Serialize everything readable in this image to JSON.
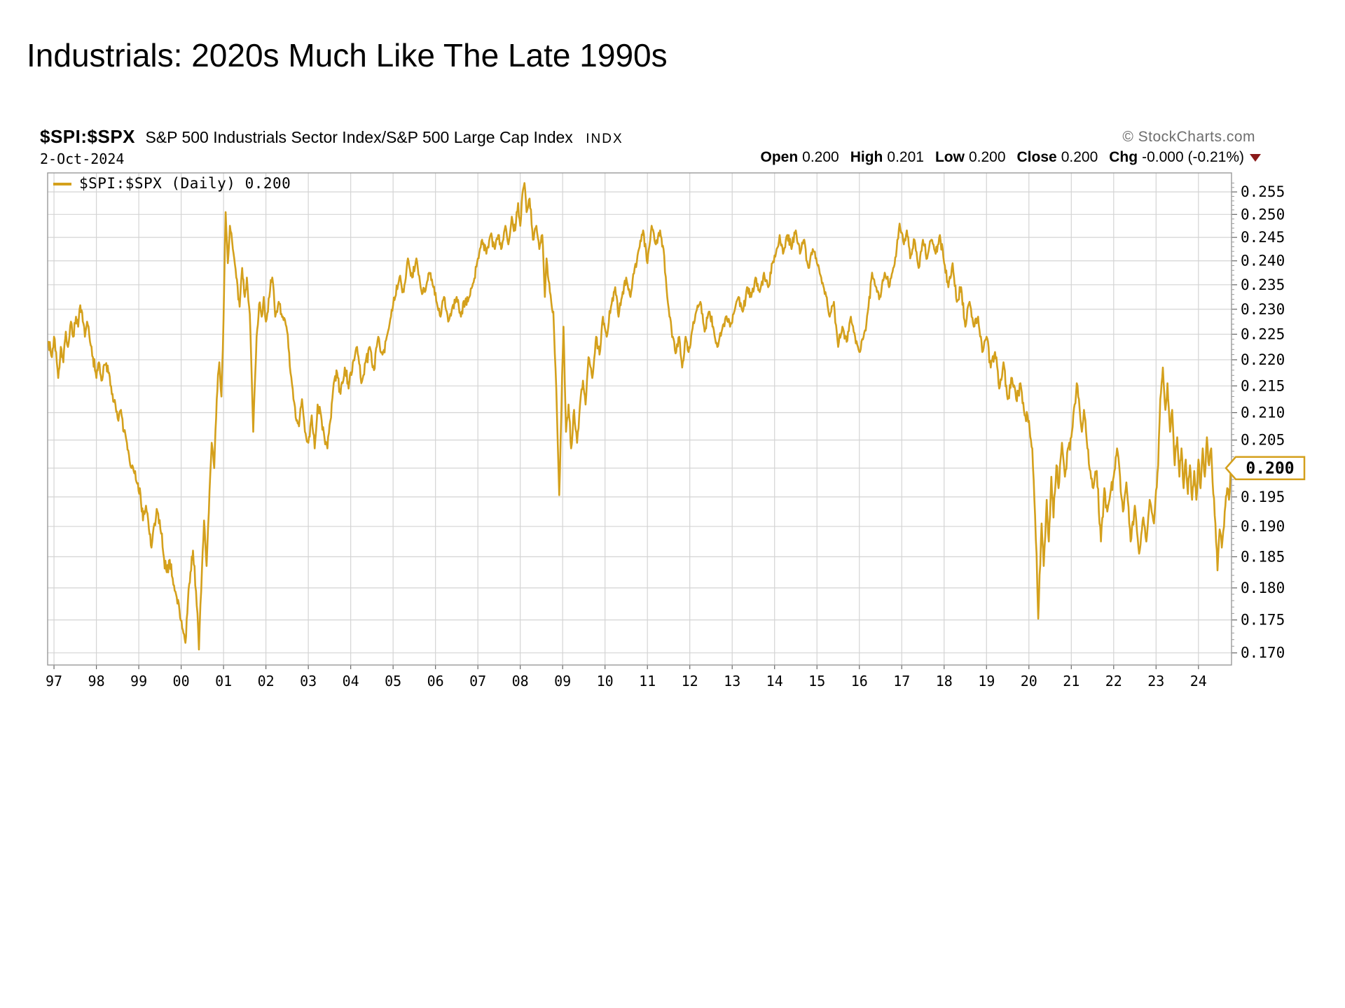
{
  "page": {
    "title": "Industrials: 2020s Much Like The Late 1990s"
  },
  "chart": {
    "symbol": "$SPI:$SPX",
    "name": "S&P 500 Industrials Sector Index/S&P 500 Large Cap Index",
    "exchange": "INDX",
    "source": "© StockCharts.com",
    "date": "2-Oct-2024",
    "legend": "$SPI:$SPX (Daily) 0.200",
    "price_tag": "0.200",
    "quote_items": [
      {
        "label": "Open",
        "value": "0.200"
      },
      {
        "label": "High",
        "value": "0.201"
      },
      {
        "label": "Low",
        "value": "0.200"
      },
      {
        "label": "Close",
        "value": "0.200"
      },
      {
        "label": "Chg",
        "value": "-0.000 (-0.21%)",
        "arrow": "down"
      }
    ],
    "colors": {
      "line": "#D4A01C",
      "grid": "#d4d4d4",
      "border": "#9a9a9a",
      "tick": "#666666",
      "tag_border": "#D4A01C",
      "arrow_negative": "#8b1a1a",
      "source_grey": "#6e6e6e"
    }
  },
  "chart_data": {
    "type": "line",
    "scale": "log",
    "title": "$SPI:$SPX (Daily)",
    "legend_entries": [
      "$SPI:$SPX (Daily) 0.200"
    ],
    "grid": true,
    "x_labels": [
      "97",
      "98",
      "99",
      "00",
      "01",
      "02",
      "03",
      "04",
      "05",
      "06",
      "07",
      "08",
      "09",
      "10",
      "11",
      "12",
      "13",
      "14",
      "15",
      "16",
      "17",
      "18",
      "19",
      "20",
      "21",
      "22",
      "23",
      "24"
    ],
    "x_axis_min": 1996.85,
    "x_axis_max": 2024.78,
    "y_ticks": [
      0.255,
      0.25,
      0.245,
      0.24,
      0.235,
      0.23,
      0.225,
      0.22,
      0.215,
      0.21,
      0.205,
      0.2,
      0.195,
      0.19,
      0.185,
      0.18,
      0.175,
      0.17
    ],
    "y_axis_min": 0.1682,
    "y_axis_max": 0.2593,
    "last_value": 0.2,
    "series": [
      [
        1996.87,
        0.2235
      ],
      [
        1996.95,
        0.2205
      ],
      [
        1997.0,
        0.2245
      ],
      [
        1997.05,
        0.2215
      ],
      [
        1997.1,
        0.2165
      ],
      [
        1997.16,
        0.2225
      ],
      [
        1997.22,
        0.2195
      ],
      [
        1997.28,
        0.2255
      ],
      [
        1997.33,
        0.2225
      ],
      [
        1997.4,
        0.2275
      ],
      [
        1997.45,
        0.2245
      ],
      [
        1997.52,
        0.2285
      ],
      [
        1997.57,
        0.2265
      ],
      [
        1997.62,
        0.2308
      ],
      [
        1997.68,
        0.2275
      ],
      [
        1997.73,
        0.2245
      ],
      [
        1997.78,
        0.2275
      ],
      [
        1997.85,
        0.2235
      ],
      [
        1997.92,
        0.2205
      ],
      [
        1998.0,
        0.2165
      ],
      [
        1998.06,
        0.2195
      ],
      [
        1998.12,
        0.216
      ],
      [
        1998.2,
        0.219
      ],
      [
        1998.3,
        0.2175
      ],
      [
        1998.38,
        0.2135
      ],
      [
        1998.45,
        0.2115
      ],
      [
        1998.52,
        0.2085
      ],
      [
        1998.58,
        0.2105
      ],
      [
        1998.65,
        0.2065
      ],
      [
        1998.72,
        0.2045
      ],
      [
        1998.8,
        0.2005
      ],
      [
        1998.88,
        0.1995
      ],
      [
        1998.95,
        0.1975
      ],
      [
        1999.04,
        0.1955
      ],
      [
        1999.1,
        0.191
      ],
      [
        1999.17,
        0.1935
      ],
      [
        1999.24,
        0.1895
      ],
      [
        1999.3,
        0.1865
      ],
      [
        1999.37,
        0.1905
      ],
      [
        1999.44,
        0.1925
      ],
      [
        1999.51,
        0.1895
      ],
      [
        1999.58,
        0.1855
      ],
      [
        1999.66,
        0.1825
      ],
      [
        1999.73,
        0.1845
      ],
      [
        1999.8,
        0.1815
      ],
      [
        1999.88,
        0.179
      ],
      [
        1999.96,
        0.1765
      ],
      [
        2000.04,
        0.1735
      ],
      [
        2000.1,
        0.1715
      ],
      [
        2000.16,
        0.178
      ],
      [
        2000.22,
        0.1825
      ],
      [
        2000.28,
        0.186
      ],
      [
        2000.35,
        0.1795
      ],
      [
        2000.42,
        0.1705
      ],
      [
        2000.49,
        0.183
      ],
      [
        2000.54,
        0.191
      ],
      [
        2000.6,
        0.1835
      ],
      [
        2000.67,
        0.196
      ],
      [
        2000.72,
        0.2045
      ],
      [
        2000.78,
        0.2
      ],
      [
        2000.84,
        0.2125
      ],
      [
        2000.9,
        0.2195
      ],
      [
        2000.95,
        0.213
      ],
      [
        2001.0,
        0.228
      ],
      [
        2001.05,
        0.2505
      ],
      [
        2001.1,
        0.2395
      ],
      [
        2001.15,
        0.2475
      ],
      [
        2001.22,
        0.2425
      ],
      [
        2001.3,
        0.2365
      ],
      [
        2001.38,
        0.2305
      ],
      [
        2001.44,
        0.2385
      ],
      [
        2001.5,
        0.2325
      ],
      [
        2001.55,
        0.2365
      ],
      [
        2001.62,
        0.229
      ],
      [
        2001.7,
        0.2065
      ],
      [
        2001.78,
        0.2245
      ],
      [
        2001.84,
        0.231
      ],
      [
        2001.9,
        0.2285
      ],
      [
        2001.95,
        0.2325
      ],
      [
        2002.0,
        0.2275
      ],
      [
        2002.08,
        0.2325
      ],
      [
        2002.15,
        0.2365
      ],
      [
        2002.22,
        0.2285
      ],
      [
        2002.3,
        0.2315
      ],
      [
        2002.4,
        0.2285
      ],
      [
        2002.5,
        0.2255
      ],
      [
        2002.58,
        0.2175
      ],
      [
        2002.65,
        0.2125
      ],
      [
        2002.72,
        0.2085
      ],
      [
        2002.78,
        0.2075
      ],
      [
        2002.85,
        0.2125
      ],
      [
        2002.92,
        0.2065
      ],
      [
        2003.0,
        0.2045
      ],
      [
        2003.08,
        0.2095
      ],
      [
        2003.15,
        0.2035
      ],
      [
        2003.22,
        0.2115
      ],
      [
        2003.3,
        0.2095
      ],
      [
        2003.38,
        0.2055
      ],
      [
        2003.45,
        0.2035
      ],
      [
        2003.52,
        0.2085
      ],
      [
        2003.6,
        0.2155
      ],
      [
        2003.68,
        0.2175
      ],
      [
        2003.76,
        0.2135
      ],
      [
        2003.86,
        0.2185
      ],
      [
        2003.95,
        0.2145
      ],
      [
        2004.05,
        0.2195
      ],
      [
        2004.15,
        0.2225
      ],
      [
        2004.25,
        0.2155
      ],
      [
        2004.35,
        0.2195
      ],
      [
        2004.45,
        0.2225
      ],
      [
        2004.55,
        0.218
      ],
      [
        2004.65,
        0.2245
      ],
      [
        2004.75,
        0.221
      ],
      [
        2004.85,
        0.2245
      ],
      [
        2004.95,
        0.2285
      ],
      [
        2005.05,
        0.2325
      ],
      [
        2005.15,
        0.2365
      ],
      [
        2005.25,
        0.2335
      ],
      [
        2005.35,
        0.2405
      ],
      [
        2005.45,
        0.2365
      ],
      [
        2005.55,
        0.2405
      ],
      [
        2005.65,
        0.2345
      ],
      [
        2005.75,
        0.2335
      ],
      [
        2005.85,
        0.2375
      ],
      [
        2005.95,
        0.2345
      ],
      [
        2006.05,
        0.2305
      ],
      [
        2006.12,
        0.2285
      ],
      [
        2006.2,
        0.2325
      ],
      [
        2006.3,
        0.2275
      ],
      [
        2006.4,
        0.2305
      ],
      [
        2006.5,
        0.2325
      ],
      [
        2006.6,
        0.2285
      ],
      [
        2006.7,
        0.2315
      ],
      [
        2006.8,
        0.2325
      ],
      [
        2006.9,
        0.2355
      ],
      [
        2007.0,
        0.2405
      ],
      [
        2007.1,
        0.2445
      ],
      [
        2007.2,
        0.2415
      ],
      [
        2007.3,
        0.2455
      ],
      [
        2007.4,
        0.2425
      ],
      [
        2007.48,
        0.2455
      ],
      [
        2007.55,
        0.2425
      ],
      [
        2007.65,
        0.2475
      ],
      [
        2007.72,
        0.2435
      ],
      [
        2007.8,
        0.2495
      ],
      [
        2007.88,
        0.2465
      ],
      [
        2007.95,
        0.2525
      ],
      [
        2008.0,
        0.2475
      ],
      [
        2008.05,
        0.2545
      ],
      [
        2008.1,
        0.257
      ],
      [
        2008.15,
        0.2505
      ],
      [
        2008.22,
        0.2535
      ],
      [
        2008.3,
        0.2445
      ],
      [
        2008.38,
        0.2475
      ],
      [
        2008.45,
        0.2425
      ],
      [
        2008.52,
        0.2455
      ],
      [
        2008.58,
        0.2325
      ],
      [
        2008.62,
        0.2405
      ],
      [
        2008.7,
        0.2335
      ],
      [
        2008.78,
        0.2295
      ],
      [
        2008.85,
        0.2145
      ],
      [
        2008.92,
        0.1953
      ],
      [
        2008.97,
        0.2105
      ],
      [
        2009.02,
        0.2265
      ],
      [
        2009.08,
        0.2065
      ],
      [
        2009.14,
        0.2115
      ],
      [
        2009.2,
        0.2035
      ],
      [
        2009.27,
        0.2105
      ],
      [
        2009.34,
        0.2045
      ],
      [
        2009.41,
        0.2115
      ],
      [
        2009.48,
        0.216
      ],
      [
        2009.54,
        0.2115
      ],
      [
        2009.61,
        0.2205
      ],
      [
        2009.7,
        0.2165
      ],
      [
        2009.79,
        0.2245
      ],
      [
        2009.87,
        0.221
      ],
      [
        2009.95,
        0.2285
      ],
      [
        2010.04,
        0.2245
      ],
      [
        2010.14,
        0.2305
      ],
      [
        2010.24,
        0.2345
      ],
      [
        2010.32,
        0.2285
      ],
      [
        2010.4,
        0.2325
      ],
      [
        2010.5,
        0.2365
      ],
      [
        2010.6,
        0.2325
      ],
      [
        2010.7,
        0.2385
      ],
      [
        2010.8,
        0.2425
      ],
      [
        2010.9,
        0.2465
      ],
      [
        2011.0,
        0.2395
      ],
      [
        2011.1,
        0.2475
      ],
      [
        2011.2,
        0.2435
      ],
      [
        2011.3,
        0.2465
      ],
      [
        2011.38,
        0.2425
      ],
      [
        2011.45,
        0.2345
      ],
      [
        2011.52,
        0.2285
      ],
      [
        2011.6,
        0.2245
      ],
      [
        2011.68,
        0.2215
      ],
      [
        2011.75,
        0.2245
      ],
      [
        2011.82,
        0.2185
      ],
      [
        2011.9,
        0.2245
      ],
      [
        2011.97,
        0.2215
      ],
      [
        2012.05,
        0.2255
      ],
      [
        2012.15,
        0.2295
      ],
      [
        2012.25,
        0.2315
      ],
      [
        2012.35,
        0.2255
      ],
      [
        2012.45,
        0.2295
      ],
      [
        2012.55,
        0.2265
      ],
      [
        2012.65,
        0.2225
      ],
      [
        2012.75,
        0.2255
      ],
      [
        2012.85,
        0.2285
      ],
      [
        2012.95,
        0.2265
      ],
      [
        2013.05,
        0.2295
      ],
      [
        2013.15,
        0.2325
      ],
      [
        2013.25,
        0.2295
      ],
      [
        2013.35,
        0.2345
      ],
      [
        2013.45,
        0.2325
      ],
      [
        2013.55,
        0.2365
      ],
      [
        2013.65,
        0.2335
      ],
      [
        2013.75,
        0.2375
      ],
      [
        2013.85,
        0.2345
      ],
      [
        2013.95,
        0.2395
      ],
      [
        2014.05,
        0.2425
      ],
      [
        2014.12,
        0.2455
      ],
      [
        2014.2,
        0.2415
      ],
      [
        2014.3,
        0.2455
      ],
      [
        2014.4,
        0.2425
      ],
      [
        2014.5,
        0.2465
      ],
      [
        2014.6,
        0.2415
      ],
      [
        2014.7,
        0.2445
      ],
      [
        2014.8,
        0.2385
      ],
      [
        2014.9,
        0.2425
      ],
      [
        2015.0,
        0.2395
      ],
      [
        2015.1,
        0.2365
      ],
      [
        2015.2,
        0.2335
      ],
      [
        2015.3,
        0.2285
      ],
      [
        2015.4,
        0.2315
      ],
      [
        2015.5,
        0.2225
      ],
      [
        2015.6,
        0.2265
      ],
      [
        2015.7,
        0.2235
      ],
      [
        2015.8,
        0.2285
      ],
      [
        2015.9,
        0.2245
      ],
      [
        2016.0,
        0.2215
      ],
      [
        2016.1,
        0.2245
      ],
      [
        2016.2,
        0.2295
      ],
      [
        2016.3,
        0.2375
      ],
      [
        2016.4,
        0.2345
      ],
      [
        2016.5,
        0.2325
      ],
      [
        2016.6,
        0.2375
      ],
      [
        2016.7,
        0.2345
      ],
      [
        2016.8,
        0.2385
      ],
      [
        2016.88,
        0.2425
      ],
      [
        2016.95,
        0.248
      ],
      [
        2017.05,
        0.2435
      ],
      [
        2017.12,
        0.2465
      ],
      [
        2017.2,
        0.2405
      ],
      [
        2017.3,
        0.2445
      ],
      [
        2017.4,
        0.2385
      ],
      [
        2017.5,
        0.2445
      ],
      [
        2017.6,
        0.2405
      ],
      [
        2017.7,
        0.2445
      ],
      [
        2017.8,
        0.2415
      ],
      [
        2017.9,
        0.2455
      ],
      [
        2018.0,
        0.2395
      ],
      [
        2018.1,
        0.2345
      ],
      [
        2018.2,
        0.2395
      ],
      [
        2018.3,
        0.2315
      ],
      [
        2018.4,
        0.2345
      ],
      [
        2018.5,
        0.2265
      ],
      [
        2018.6,
        0.2315
      ],
      [
        2018.7,
        0.2265
      ],
      [
        2018.8,
        0.2285
      ],
      [
        2018.9,
        0.2215
      ],
      [
        2019.0,
        0.2245
      ],
      [
        2019.1,
        0.2185
      ],
      [
        2019.2,
        0.2215
      ],
      [
        2019.3,
        0.2145
      ],
      [
        2019.4,
        0.2195
      ],
      [
        2019.5,
        0.2125
      ],
      [
        2019.6,
        0.2165
      ],
      [
        2019.7,
        0.2125
      ],
      [
        2019.8,
        0.2155
      ],
      [
        2019.9,
        0.2095
      ],
      [
        2020.0,
        0.2085
      ],
      [
        2020.08,
        0.2035
      ],
      [
        2020.13,
        0.1945
      ],
      [
        2020.18,
        0.1855
      ],
      [
        2020.22,
        0.1752
      ],
      [
        2020.3,
        0.1905
      ],
      [
        2020.35,
        0.1835
      ],
      [
        2020.42,
        0.1945
      ],
      [
        2020.47,
        0.1875
      ],
      [
        2020.53,
        0.1985
      ],
      [
        2020.58,
        0.1915
      ],
      [
        2020.65,
        0.2005
      ],
      [
        2020.7,
        0.1965
      ],
      [
        2020.78,
        0.2045
      ],
      [
        2020.85,
        0.1985
      ],
      [
        2020.92,
        0.2035
      ],
      [
        2021.0,
        0.2055
      ],
      [
        2021.08,
        0.2115
      ],
      [
        2021.13,
        0.2155
      ],
      [
        2021.18,
        0.2125
      ],
      [
        2021.25,
        0.2065
      ],
      [
        2021.3,
        0.2105
      ],
      [
        2021.38,
        0.2035
      ],
      [
        2021.45,
        0.1995
      ],
      [
        2021.52,
        0.1965
      ],
      [
        2021.6,
        0.1995
      ],
      [
        2021.7,
        0.1875
      ],
      [
        2021.78,
        0.1965
      ],
      [
        2021.85,
        0.1925
      ],
      [
        2021.92,
        0.1955
      ],
      [
        2022.0,
        0.1985
      ],
      [
        2022.08,
        0.2035
      ],
      [
        2022.15,
        0.1985
      ],
      [
        2022.22,
        0.1925
      ],
      [
        2022.3,
        0.1975
      ],
      [
        2022.4,
        0.1875
      ],
      [
        2022.5,
        0.1935
      ],
      [
        2022.6,
        0.1855
      ],
      [
        2022.7,
        0.1915
      ],
      [
        2022.77,
        0.1875
      ],
      [
        2022.85,
        0.1945
      ],
      [
        2022.95,
        0.1905
      ],
      [
        2023.05,
        0.2005
      ],
      [
        2023.1,
        0.2125
      ],
      [
        2023.16,
        0.2185
      ],
      [
        2023.22,
        0.2105
      ],
      [
        2023.27,
        0.2155
      ],
      [
        2023.33,
        0.2065
      ],
      [
        2023.38,
        0.2105
      ],
      [
        2023.44,
        0.2005
      ],
      [
        2023.5,
        0.2055
      ],
      [
        2023.55,
        0.1985
      ],
      [
        2023.6,
        0.2035
      ],
      [
        2023.65,
        0.1965
      ],
      [
        2023.7,
        0.2015
      ],
      [
        2023.75,
        0.1955
      ],
      [
        2023.8,
        0.2005
      ],
      [
        2023.85,
        0.1945
      ],
      [
        2023.9,
        0.1995
      ],
      [
        2023.95,
        0.1945
      ],
      [
        2024.0,
        0.2015
      ],
      [
        2024.05,
        0.1965
      ],
      [
        2024.1,
        0.2035
      ],
      [
        2024.15,
        0.1985
      ],
      [
        2024.2,
        0.2055
      ],
      [
        2024.25,
        0.2005
      ],
      [
        2024.3,
        0.2035
      ],
      [
        2024.35,
        0.1955
      ],
      [
        2024.4,
        0.1905
      ],
      [
        2024.45,
        0.1828
      ],
      [
        2024.5,
        0.1895
      ],
      [
        2024.55,
        0.1865
      ],
      [
        2024.62,
        0.1925
      ],
      [
        2024.68,
        0.1965
      ],
      [
        2024.72,
        0.1945
      ],
      [
        2024.76,
        0.2
      ]
    ]
  }
}
